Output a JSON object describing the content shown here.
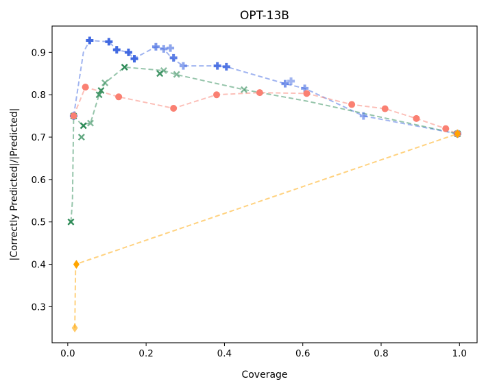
{
  "chart_data": {
    "type": "scatter",
    "title": "OPT-13B",
    "xlabel": "Coverage",
    "ylabel": "|Correctly Predicted|/|Predicted|",
    "xlim": [
      -0.04,
      1.045
    ],
    "ylim": [
      0.215,
      0.962
    ],
    "xticks": [
      0.0,
      0.2,
      0.4,
      0.6,
      0.8,
      1.0
    ],
    "xtick_labels": [
      "0.0",
      "0.2",
      "0.4",
      "0.6",
      "0.8",
      "1.0"
    ],
    "yticks": [
      0.3,
      0.4,
      0.5,
      0.6,
      0.7,
      0.8,
      0.9
    ],
    "ytick_labels": [
      "0.3",
      "0.4",
      "0.5",
      "0.6",
      "0.7",
      "0.8",
      "0.9"
    ],
    "grid": false,
    "series": [
      {
        "name": "blue-plus",
        "color": "#4169e1",
        "marker": "plus",
        "line": [
          [
            0.015,
            0.75
          ],
          [
            0.04,
            0.9
          ],
          [
            0.056,
            0.928
          ],
          [
            0.105,
            0.925
          ],
          [
            0.125,
            0.906
          ],
          [
            0.155,
            0.9
          ],
          [
            0.168,
            0.885
          ],
          [
            0.225,
            0.913
          ],
          [
            0.245,
            0.908
          ],
          [
            0.265,
            0.887
          ],
          [
            0.295,
            0.868
          ],
          [
            0.385,
            0.868
          ],
          [
            0.405,
            0.866
          ],
          [
            0.555,
            0.826
          ],
          [
            0.605,
            0.815
          ],
          [
            0.755,
            0.75
          ],
          [
            0.995,
            0.708
          ]
        ],
        "points": [
          [
            0.015,
            0.75,
            1.0
          ],
          [
            0.056,
            0.928,
            1.0
          ],
          [
            0.105,
            0.925,
            1.0
          ],
          [
            0.125,
            0.906,
            1.0
          ],
          [
            0.155,
            0.9,
            1.0
          ],
          [
            0.17,
            0.885,
            1.0
          ],
          [
            0.225,
            0.913,
            0.7
          ],
          [
            0.245,
            0.908,
            0.6
          ],
          [
            0.262,
            0.91,
            0.6
          ],
          [
            0.27,
            0.887,
            0.85
          ],
          [
            0.295,
            0.868,
            0.6
          ],
          [
            0.382,
            0.868,
            0.9
          ],
          [
            0.405,
            0.866,
            0.9
          ],
          [
            0.555,
            0.826,
            0.7
          ],
          [
            0.57,
            0.832,
            0.5
          ],
          [
            0.605,
            0.815,
            0.6
          ],
          [
            0.755,
            0.75,
            0.55
          ],
          [
            0.995,
            0.708,
            1.0
          ]
        ]
      },
      {
        "name": "green-x",
        "color": "#2e8b57",
        "marker": "x",
        "line": [
          [
            0.008,
            0.5
          ],
          [
            0.012,
            0.55
          ],
          [
            0.015,
            0.75
          ],
          [
            0.035,
            0.73
          ],
          [
            0.058,
            0.733
          ],
          [
            0.08,
            0.8
          ],
          [
            0.095,
            0.828
          ],
          [
            0.145,
            0.865
          ],
          [
            0.245,
            0.857
          ],
          [
            0.275,
            0.848
          ],
          [
            0.45,
            0.812
          ],
          [
            0.61,
            0.785
          ],
          [
            0.995,
            0.708
          ]
        ],
        "points": [
          [
            0.008,
            0.5,
            1.0
          ],
          [
            0.015,
            0.75,
            1.0
          ],
          [
            0.035,
            0.7,
            0.75
          ],
          [
            0.04,
            0.727,
            1.0
          ],
          [
            0.058,
            0.733,
            0.6
          ],
          [
            0.08,
            0.8,
            0.85
          ],
          [
            0.085,
            0.81,
            0.9
          ],
          [
            0.095,
            0.828,
            0.6
          ],
          [
            0.145,
            0.865,
            1.0
          ],
          [
            0.235,
            0.85,
            0.9
          ],
          [
            0.245,
            0.857,
            0.55
          ],
          [
            0.278,
            0.848,
            0.6
          ],
          [
            0.45,
            0.812,
            0.6
          ],
          [
            0.995,
            0.708,
            1.0
          ]
        ]
      },
      {
        "name": "red-circle",
        "color": "#fa8072",
        "marker": "circle",
        "line": [
          [
            0.015,
            0.75
          ],
          [
            0.045,
            0.818
          ],
          [
            0.13,
            0.795
          ],
          [
            0.27,
            0.768
          ],
          [
            0.38,
            0.8
          ],
          [
            0.49,
            0.805
          ],
          [
            0.61,
            0.803
          ],
          [
            0.725,
            0.777
          ],
          [
            0.81,
            0.767
          ],
          [
            0.89,
            0.744
          ],
          [
            0.965,
            0.72
          ],
          [
            0.995,
            0.708
          ]
        ],
        "points": [
          [
            0.015,
            0.75,
            1.0
          ],
          [
            0.045,
            0.818,
            1.0
          ],
          [
            0.13,
            0.795,
            1.0
          ],
          [
            0.27,
            0.768,
            1.0
          ],
          [
            0.38,
            0.8,
            1.0
          ],
          [
            0.49,
            0.805,
            1.0
          ],
          [
            0.61,
            0.803,
            1.0
          ],
          [
            0.725,
            0.777,
            1.0
          ],
          [
            0.81,
            0.767,
            1.0
          ],
          [
            0.89,
            0.744,
            1.0
          ],
          [
            0.965,
            0.72,
            1.0
          ],
          [
            0.995,
            0.708,
            1.0
          ]
        ]
      },
      {
        "name": "orange-diamond",
        "color": "#ffa500",
        "marker": "diamond",
        "line": [
          [
            0.018,
            0.25
          ],
          [
            0.02,
            0.4
          ],
          [
            0.995,
            0.708
          ]
        ],
        "points": [
          [
            0.018,
            0.25,
            0.6
          ],
          [
            0.022,
            0.4,
            1.0
          ],
          [
            0.995,
            0.708,
            1.0
          ]
        ]
      }
    ]
  }
}
